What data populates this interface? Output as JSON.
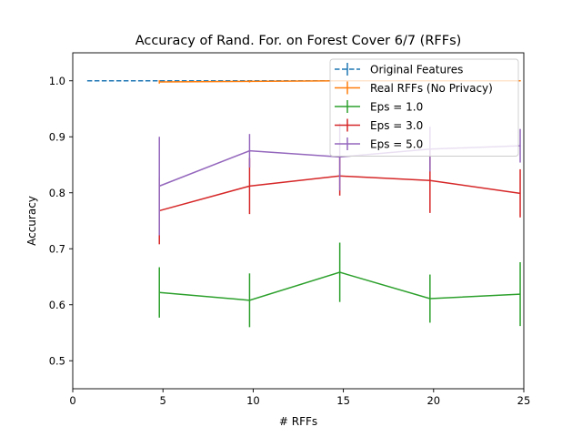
{
  "chart_data": {
    "type": "line",
    "title": "Accuracy of Rand. For. on Forest Cover 6/7 (RFFs)",
    "xlabel": "# RFFs",
    "ylabel": "Accuracy",
    "xlim": [
      0,
      25
    ],
    "ylim": [
      0.45,
      1.05
    ],
    "xticks": [
      0,
      5,
      10,
      15,
      20,
      25
    ],
    "yticks": [
      0.5,
      0.6,
      0.7,
      0.8,
      0.9,
      1.0
    ],
    "grid": false,
    "legend_position": "top-right",
    "series": [
      {
        "name": "Original Features",
        "color": "#1f77b4",
        "dashed": true,
        "x": [
          0.8,
          24.8
        ],
        "y": [
          1.0,
          1.0
        ],
        "err": [
          0.0,
          0.0
        ]
      },
      {
        "name": "Real RFFs (No Privacy)",
        "color": "#ff7f0e",
        "dashed": false,
        "x": [
          4.8,
          9.8,
          14.8,
          19.8,
          24.8
        ],
        "y": [
          0.998,
          0.999,
          1.0,
          1.0,
          1.0
        ],
        "err": [
          0.003,
          0.002,
          0.001,
          0.001,
          0.001
        ]
      },
      {
        "name": "Eps = 1.0",
        "color": "#2ca02c",
        "dashed": false,
        "x": [
          4.8,
          9.8,
          14.8,
          19.8,
          24.8
        ],
        "y": [
          0.622,
          0.608,
          0.658,
          0.611,
          0.619
        ],
        "err": [
          0.045,
          0.048,
          0.053,
          0.043,
          0.057
        ]
      },
      {
        "name": "Eps = 3.0",
        "color": "#d62728",
        "dashed": false,
        "x": [
          4.8,
          9.8,
          14.8,
          19.8,
          24.8
        ],
        "y": [
          0.768,
          0.812,
          0.83,
          0.822,
          0.799
        ],
        "err": [
          0.06,
          0.05,
          0.035,
          0.058,
          0.043
        ]
      },
      {
        "name": "Eps = 5.0",
        "color": "#9467bd",
        "dashed": false,
        "x": [
          4.8,
          9.8,
          14.8,
          19.8,
          24.8
        ],
        "y": [
          0.812,
          0.875,
          0.864,
          0.878,
          0.884
        ],
        "err": [
          0.088,
          0.03,
          0.06,
          0.04,
          0.03
        ]
      }
    ]
  }
}
